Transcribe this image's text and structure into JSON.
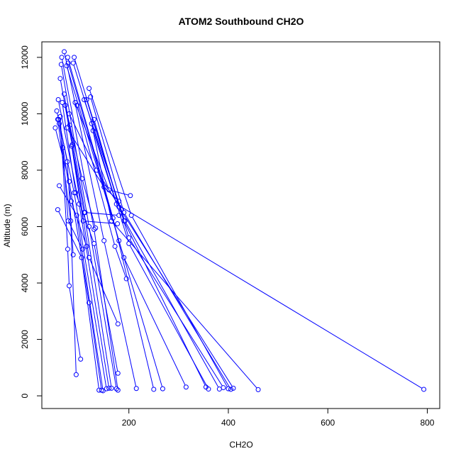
{
  "chart_data": {
    "type": "line",
    "title": "ATOM2 Southbound CH2O",
    "xlabel": "CH2O",
    "ylabel": "Altitude (m)",
    "xlim": [
      25,
      825
    ],
    "ylim": [
      -450,
      12550
    ],
    "xticks": [
      200,
      400,
      600,
      800
    ],
    "yticks": [
      0,
      2000,
      4000,
      6000,
      8000,
      10000,
      12000
    ],
    "series_color": "#0000ff",
    "marker": "open-circle",
    "grid": false,
    "legend": "none",
    "series": [
      {
        "points": [
          [
            57,
            6600
          ],
          [
            105,
            4900
          ],
          [
            140,
            200
          ]
        ]
      },
      {
        "points": [
          [
            60,
            7450
          ],
          [
            95,
            6400
          ],
          [
            148,
            180
          ]
        ]
      },
      {
        "points": [
          [
            52,
            9500
          ],
          [
            80,
            7600
          ],
          [
            120,
            3300
          ],
          [
            145,
            200
          ]
        ]
      },
      {
        "points": [
          [
            55,
            10100
          ],
          [
            90,
            7200
          ],
          [
            155,
            250
          ]
        ]
      },
      {
        "points": [
          [
            58,
            10500
          ],
          [
            100,
            6800
          ],
          [
            160,
            270
          ]
        ]
      },
      {
        "points": [
          [
            62,
            11250
          ],
          [
            110,
            6500
          ],
          [
            165,
            270
          ]
        ]
      },
      {
        "points": [
          [
            64,
            11750
          ],
          [
            120,
            6000
          ],
          [
            175,
            250
          ]
        ]
      },
      {
        "points": [
          [
            65,
            12000
          ],
          [
            130,
            5900
          ],
          [
            178,
            200
          ]
        ]
      },
      {
        "points": [
          [
            70,
            12200
          ],
          [
            150,
            5500
          ],
          [
            215,
            260
          ]
        ]
      },
      {
        "points": [
          [
            77,
            12000
          ],
          [
            168,
            6300
          ],
          [
            250,
            230
          ]
        ]
      },
      {
        "points": [
          [
            78,
            11800
          ],
          [
            180,
            5500
          ],
          [
            268,
            250
          ]
        ]
      },
      {
        "points": [
          [
            75,
            11700
          ],
          [
            190,
            4900
          ],
          [
            315,
            310
          ]
        ]
      },
      {
        "points": [
          [
            90,
            12000
          ],
          [
            190,
            6200
          ],
          [
            355,
            310
          ]
        ]
      },
      {
        "points": [
          [
            88,
            11800
          ],
          [
            200,
            5400
          ],
          [
            360,
            240
          ]
        ]
      },
      {
        "points": [
          [
            110,
            10500
          ],
          [
            192,
            6200
          ],
          [
            382,
            240
          ]
        ]
      },
      {
        "points": [
          [
            115,
            10500
          ],
          [
            200,
            5600
          ],
          [
            390,
            290
          ]
        ]
      },
      {
        "points": [
          [
            120,
            10900
          ],
          [
            205,
            6400
          ],
          [
            400,
            250
          ]
        ]
      },
      {
        "points": [
          [
            123,
            10600
          ],
          [
            190,
            6500
          ],
          [
            405,
            230
          ]
        ]
      },
      {
        "points": [
          [
            130,
            9800
          ],
          [
            180,
            6700
          ],
          [
            410,
            270
          ]
        ]
      },
      {
        "points": [
          [
            125,
            9650
          ],
          [
            165,
            6200
          ],
          [
            460,
            220
          ]
        ]
      },
      {
        "points": [
          [
            128,
            9400
          ],
          [
            175,
            6800
          ],
          [
            793,
            230
          ]
        ]
      },
      {
        "points": [
          [
            92,
            10400
          ],
          [
            160,
            7300
          ],
          [
            203,
            7100
          ]
        ]
      },
      {
        "points": [
          [
            96,
            10300
          ],
          [
            172,
            5300
          ],
          [
            195,
            4150
          ]
        ]
      },
      {
        "points": [
          [
            57,
            9800
          ],
          [
            83,
            6200
          ],
          [
            94,
            750
          ]
        ]
      },
      {
        "points": [
          [
            62,
            9900
          ],
          [
            77,
            5200
          ],
          [
            80,
            3900
          ],
          [
            103,
            1300
          ]
        ]
      },
      {
        "points": [
          [
            70,
            10700
          ],
          [
            86,
            8900
          ],
          [
            120,
            4900
          ],
          [
            178,
            2550
          ]
        ]
      },
      {
        "points": [
          [
            66,
            10400
          ],
          [
            93,
            7200
          ],
          [
            130,
            5400
          ],
          [
            178,
            800
          ]
        ]
      },
      {
        "points": [
          [
            67,
            8800
          ],
          [
            78,
            6200
          ],
          [
            107,
            5200
          ]
        ]
      },
      {
        "points": [
          [
            60,
            9650
          ],
          [
            84,
            6900
          ],
          [
            115,
            5300
          ]
        ]
      },
      {
        "points": [
          [
            59,
            9800
          ],
          [
            76,
            8300
          ],
          [
            88,
            5000
          ]
        ]
      },
      {
        "points": [
          [
            72,
            10300
          ],
          [
            106,
            7700
          ],
          [
            133,
            5950
          ]
        ]
      },
      {
        "points": [
          [
            81,
            9600
          ],
          [
            112,
            6500
          ],
          [
            180,
            6400
          ]
        ]
      },
      {
        "points": [
          [
            85,
            8850
          ],
          [
            108,
            6200
          ],
          [
            177,
            6100
          ]
        ]
      },
      {
        "points": [
          [
            75,
            9500
          ],
          [
            150,
            7400
          ],
          [
            180,
            6900
          ]
        ]
      },
      {
        "points": [
          [
            80,
            10000
          ],
          [
            135,
            8000
          ],
          [
            185,
            6600
          ]
        ]
      }
    ]
  }
}
